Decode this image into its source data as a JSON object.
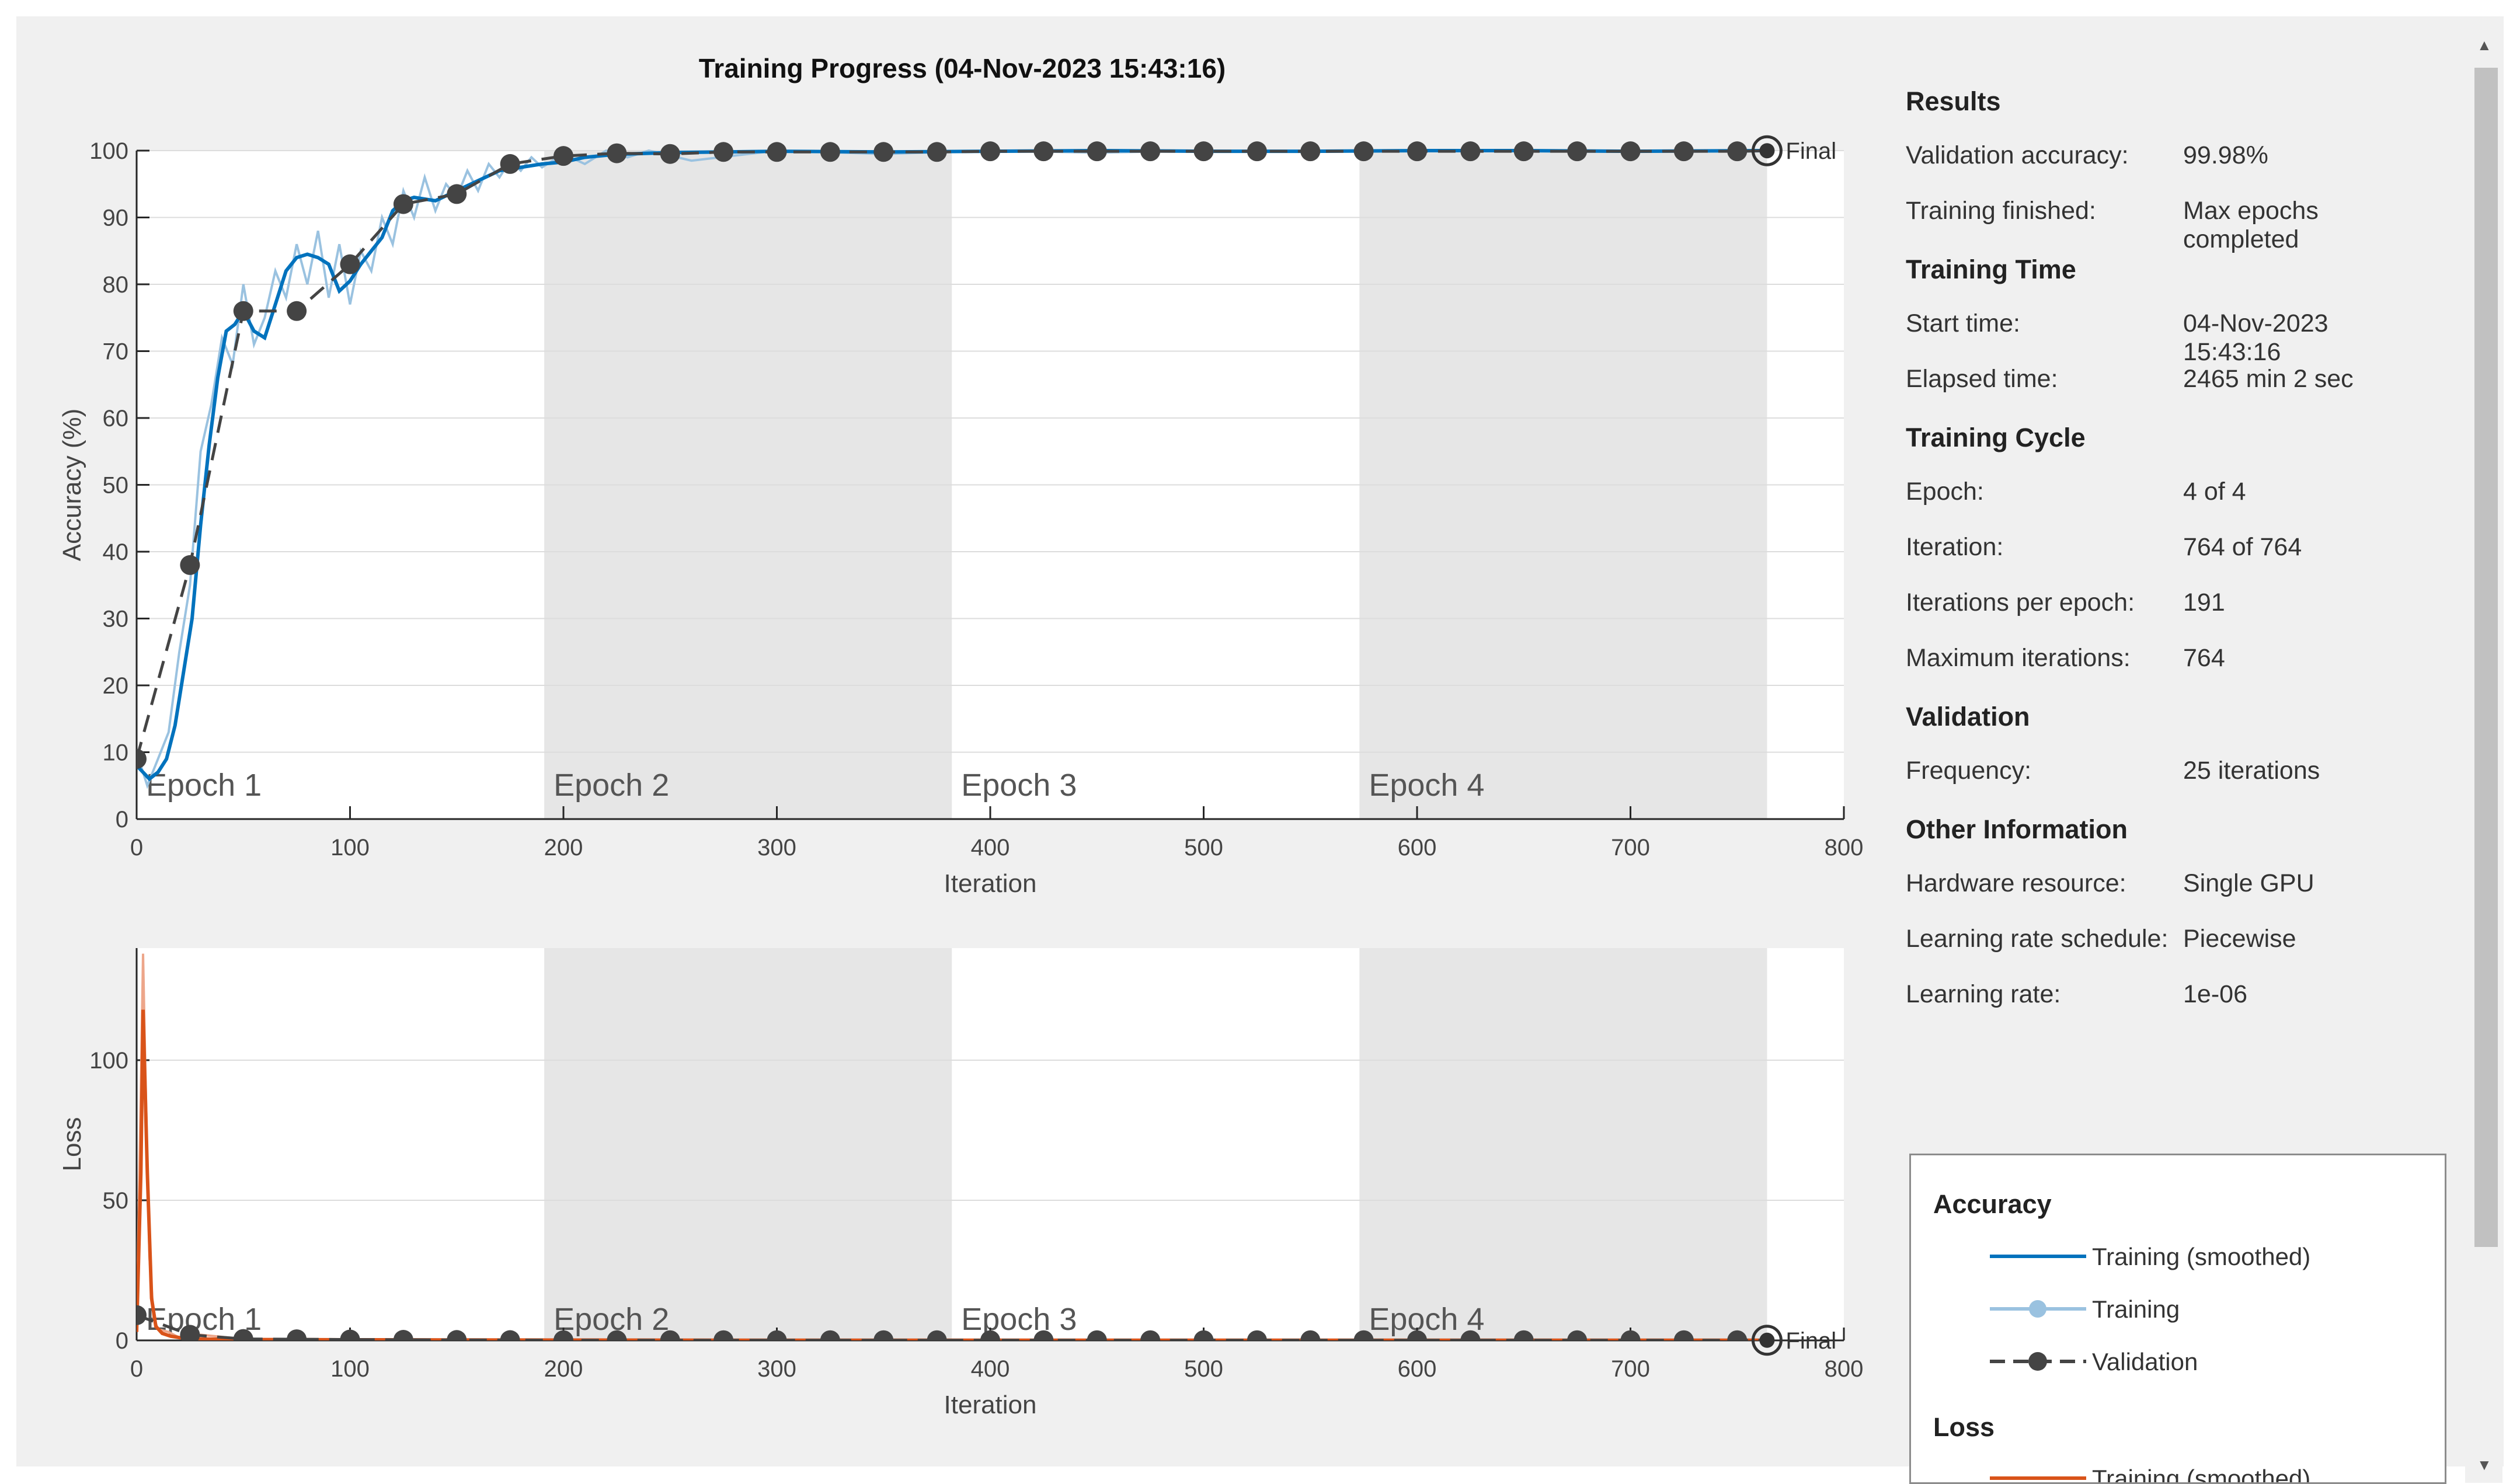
{
  "window": {
    "title": "Training Progress (04-Nov-2023 15:43:16)"
  },
  "info_panel": {
    "sections": [
      {
        "heading": "Results",
        "rows": [
          {
            "label": "Validation accuracy:",
            "value": "99.98%"
          },
          {
            "label": "Training finished:",
            "value": "Max epochs completed"
          }
        ]
      },
      {
        "heading": "Training Time",
        "rows": [
          {
            "label": "Start time:",
            "value": "04-Nov-2023 15:43:16"
          },
          {
            "label": "Elapsed time:",
            "value": "2465 min 2 sec"
          }
        ]
      },
      {
        "heading": "Training Cycle",
        "rows": [
          {
            "label": "Epoch:",
            "value": "4 of 4"
          },
          {
            "label": "Iteration:",
            "value": "764 of 764"
          },
          {
            "label": "Iterations per epoch:",
            "value": "191"
          },
          {
            "label": "Maximum iterations:",
            "value": "764"
          }
        ]
      },
      {
        "heading": "Validation",
        "rows": [
          {
            "label": "Frequency:",
            "value": "25 iterations"
          }
        ]
      },
      {
        "heading": "Other Information",
        "rows": [
          {
            "label": "Hardware resource:",
            "value": "Single GPU"
          },
          {
            "label": "Learning rate schedule:",
            "value": "Piecewise"
          },
          {
            "label": "Learning rate:",
            "value": "1e-06"
          }
        ]
      }
    ]
  },
  "legend": {
    "accuracy_heading": "Accuracy",
    "accuracy_items": [
      "Training (smoothed)",
      "Training",
      "Validation"
    ],
    "loss_heading": "Loss",
    "loss_items": [
      "Training (smoothed)"
    ]
  },
  "colors": {
    "accuracy_smoothed": "#0072bd",
    "accuracy_raw": "#9ac2e0",
    "loss_smoothed": "#d95319",
    "loss_raw": "#eda68a",
    "validation": "#444444",
    "epoch_shade": "#e6e6e6",
    "plot_bg": "#ffffff",
    "grid": "#dcdcdc"
  },
  "chart_data": [
    {
      "type": "line",
      "xlabel": "Iteration",
      "ylabel": "Accuracy (%)",
      "xlim": [
        0,
        800
      ],
      "ylim": [
        0,
        100
      ],
      "xticks": [
        0,
        100,
        200,
        300,
        400,
        500,
        600,
        700,
        800
      ],
      "yticks": [
        0,
        10,
        20,
        30,
        40,
        50,
        60,
        70,
        80,
        90,
        100
      ],
      "grid": true,
      "epoch_labels": [
        "Epoch 1",
        "Epoch 2",
        "Epoch 3",
        "Epoch 4"
      ],
      "epoch_bounds": [
        0,
        191,
        382,
        573,
        764
      ],
      "final_label": "Final",
      "series": [
        {
          "name": "Training (smoothed)",
          "x": [
            0,
            3,
            6,
            10,
            14,
            18,
            22,
            26,
            30,
            34,
            38,
            42,
            46,
            50,
            55,
            60,
            65,
            70,
            75,
            80,
            85,
            90,
            95,
            100,
            105,
            110,
            115,
            120,
            125,
            130,
            140,
            150,
            160,
            170,
            180,
            190,
            200,
            210,
            220,
            230,
            250,
            300,
            350,
            400,
            450,
            500,
            550,
            600,
            650,
            700,
            764
          ],
          "y": [
            8,
            7,
            6,
            7,
            9,
            14,
            22,
            30,
            44,
            56,
            66,
            73,
            74,
            76,
            73,
            72,
            77,
            82,
            84,
            84.5,
            84,
            83,
            79,
            80.5,
            83,
            85,
            87,
            91,
            92.5,
            93,
            92.5,
            94,
            95.5,
            97,
            97.5,
            98,
            98.3,
            99,
            99.3,
            99.5,
            99.7,
            99.9,
            99.8,
            99.9,
            100,
            99.9,
            99.9,
            100,
            100,
            99.9,
            100
          ]
        },
        {
          "name": "Training",
          "x": [
            0,
            5,
            10,
            15,
            20,
            25,
            30,
            35,
            40,
            45,
            50,
            55,
            60,
            65,
            70,
            75,
            80,
            85,
            90,
            95,
            100,
            105,
            110,
            115,
            120,
            125,
            130,
            135,
            140,
            145,
            150,
            155,
            160,
            165,
            170,
            175,
            180,
            185,
            190,
            200,
            210,
            220,
            230,
            240,
            260,
            300,
            350,
            400,
            450,
            500,
            550,
            600,
            650,
            700,
            764
          ],
          "y": [
            10,
            5,
            9,
            13,
            25,
            35,
            55,
            62,
            72,
            68,
            80,
            71,
            75,
            82,
            78,
            86,
            80,
            88,
            78,
            86,
            77,
            85,
            82,
            90,
            86,
            94,
            90,
            96,
            91,
            95,
            93,
            97,
            94,
            98,
            96,
            98.5,
            97,
            99,
            97.5,
            99.5,
            98,
            100,
            99,
            100,
            98.5,
            100,
            99.5,
            100,
            99.7,
            100,
            99.8,
            100,
            99.9,
            100,
            100
          ]
        },
        {
          "name": "Validation",
          "x": [
            0,
            25,
            50,
            75,
            100,
            125,
            150,
            175,
            200,
            225,
            250,
            275,
            300,
            325,
            350,
            375,
            400,
            425,
            450,
            475,
            500,
            525,
            550,
            575,
            600,
            625,
            650,
            675,
            700,
            725,
            750,
            764
          ],
          "y": [
            9,
            38,
            76,
            76,
            83,
            92,
            93.5,
            98,
            99.2,
            99.6,
            99.5,
            99.8,
            99.8,
            99.8,
            99.8,
            99.8,
            99.9,
            99.9,
            99.9,
            99.9,
            99.9,
            99.9,
            99.9,
            99.9,
            99.9,
            99.9,
            99.9,
            99.9,
            99.9,
            99.9,
            99.9,
            99.98
          ]
        }
      ]
    },
    {
      "type": "line",
      "xlabel": "Iteration",
      "ylabel": "Loss",
      "xlim": [
        0,
        800
      ],
      "ylim": [
        0,
        140
      ],
      "xticks": [
        0,
        100,
        200,
        300,
        400,
        500,
        600,
        700,
        800
      ],
      "yticks": [
        0,
        50,
        100
      ],
      "grid": true,
      "epoch_labels": [
        "Epoch 1",
        "Epoch 2",
        "Epoch 3",
        "Epoch 4"
      ],
      "epoch_bounds": [
        0,
        191,
        382,
        573,
        764
      ],
      "final_label": "Final",
      "series": [
        {
          "name": "Training (smoothed)",
          "x": [
            0,
            2,
            3,
            5,
            7,
            9,
            12,
            16,
            20,
            30,
            50,
            100,
            200,
            300,
            400,
            500,
            600,
            700,
            764
          ],
          "y": [
            3,
            60,
            118,
            60,
            15,
            5,
            2.5,
            1.5,
            1,
            0.5,
            0.3,
            0.2,
            0.1,
            0.05,
            0.05,
            0.05,
            0.05,
            0.05,
            0.05
          ]
        },
        {
          "name": "Training",
          "x": [
            0,
            2,
            3,
            4,
            6,
            8,
            10,
            15,
            20,
            30,
            50,
            100,
            200,
            300,
            400,
            500,
            600,
            700,
            764
          ],
          "y": [
            5,
            90,
            138,
            100,
            30,
            8,
            4,
            3,
            1,
            2,
            0.5,
            0.4,
            0.2,
            0.1,
            0.1,
            0.05,
            0.05,
            0.05,
            0.05
          ]
        },
        {
          "name": "Validation",
          "x": [
            0,
            25,
            50,
            75,
            100,
            125,
            150,
            175,
            200,
            225,
            250,
            275,
            300,
            325,
            350,
            375,
            400,
            425,
            450,
            475,
            500,
            525,
            550,
            575,
            600,
            625,
            650,
            675,
            700,
            725,
            750,
            764
          ],
          "y": [
            9,
            2,
            0.5,
            0.4,
            0.3,
            0.2,
            0.15,
            0.1,
            0.05,
            0.05,
            0.05,
            0.05,
            0.05,
            0.05,
            0.05,
            0.05,
            0.05,
            0.05,
            0.05,
            0.05,
            0.05,
            0.05,
            0.05,
            0.05,
            0.05,
            0.05,
            0.05,
            0.05,
            0.05,
            0.05,
            0.05,
            0.05
          ]
        }
      ]
    }
  ]
}
